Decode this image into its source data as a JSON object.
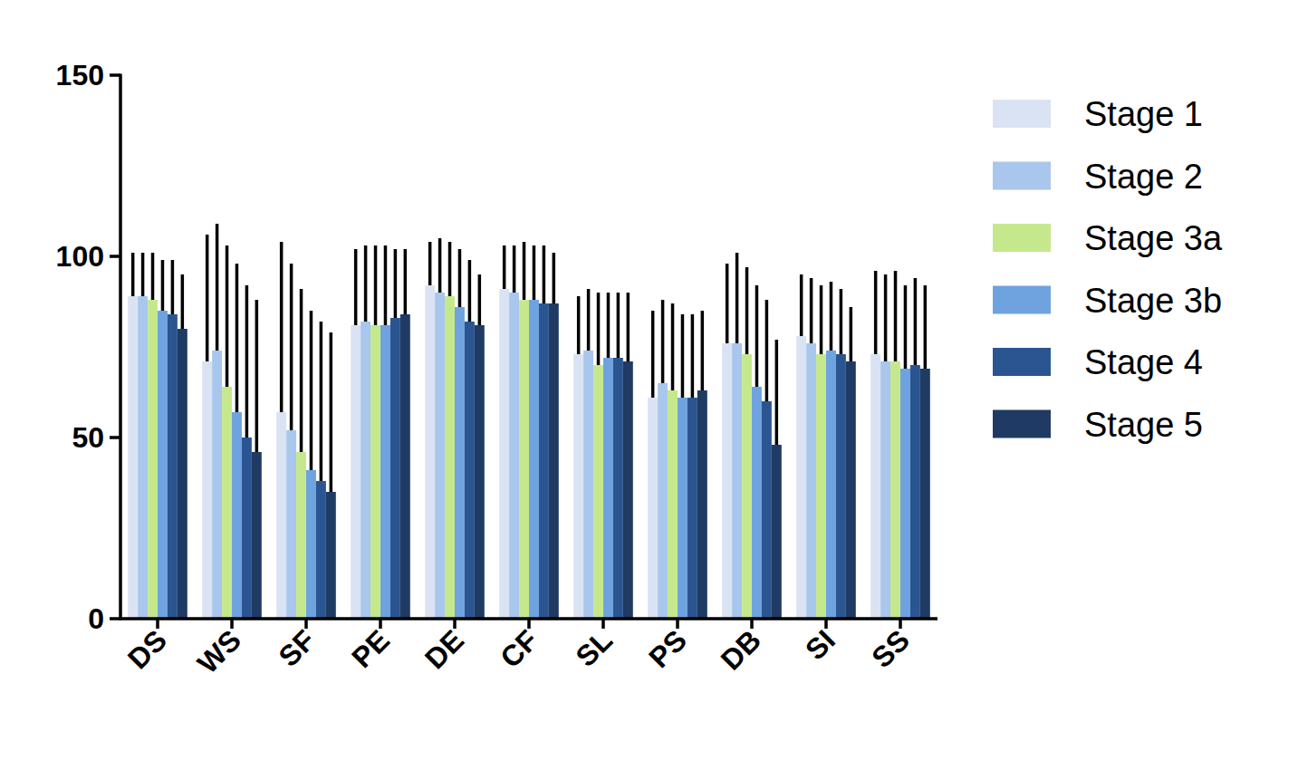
{
  "chart_data": {
    "type": "bar",
    "categories": [
      "DS",
      "WS",
      "SF",
      "PE",
      "DE",
      "CF",
      "SL",
      "PS",
      "DB",
      "SI",
      "SS"
    ],
    "ylim": [
      0,
      150
    ],
    "yticks": [
      0,
      50,
      100,
      150
    ],
    "grid": false,
    "legend": "right",
    "series": [
      {
        "name": "Stage 1",
        "color": "#dae3f3",
        "values": [
          89,
          71,
          57,
          81,
          92,
          91,
          73,
          61,
          76,
          78,
          73
        ],
        "errors": [
          12,
          35,
          47,
          21,
          12,
          12,
          16,
          24,
          22,
          17,
          23
        ]
      },
      {
        "name": "Stage 2",
        "color": "#a9c6ec",
        "values": [
          89,
          74,
          52,
          82,
          90,
          90,
          74,
          65,
          76,
          76,
          71
        ],
        "errors": [
          12,
          35,
          46,
          21,
          15,
          13,
          17,
          23,
          25,
          18,
          24
        ]
      },
      {
        "name": "Stage 3a",
        "color": "#c6e88d",
        "values": [
          88,
          64,
          46,
          81,
          89,
          88,
          70,
          63,
          73,
          73,
          71
        ],
        "errors": [
          13,
          39,
          45,
          22,
          15,
          16,
          20,
          24,
          24,
          19,
          25
        ]
      },
      {
        "name": "Stage 3b",
        "color": "#6fa3e0",
        "values": [
          85,
          57,
          41,
          81,
          86,
          88,
          72,
          61,
          64,
          74,
          69
        ],
        "errors": [
          14,
          41,
          44,
          22,
          16,
          15,
          18,
          23,
          28,
          19,
          23
        ]
      },
      {
        "name": "Stage 4",
        "color": "#2b5591",
        "values": [
          84,
          50,
          38,
          83,
          82,
          87,
          72,
          61,
          60,
          73,
          70
        ],
        "errors": [
          15,
          42,
          44,
          19,
          17,
          16,
          18,
          23,
          28,
          18,
          24
        ]
      },
      {
        "name": "Stage 5",
        "color": "#1f3b63",
        "values": [
          80,
          46,
          35,
          84,
          81,
          87,
          71,
          63,
          48,
          71,
          69
        ],
        "errors": [
          15,
          42,
          44,
          18,
          14,
          14,
          19,
          22,
          29,
          15,
          23
        ]
      }
    ]
  }
}
